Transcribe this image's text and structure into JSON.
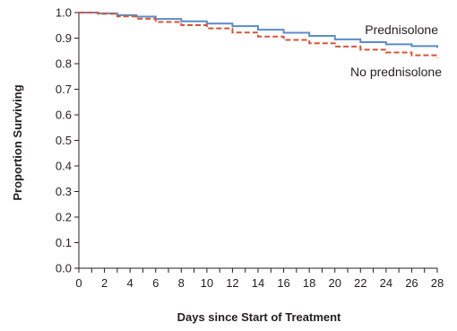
{
  "chart_data": {
    "type": "line",
    "title": "",
    "xlabel": "Days since Start of Treatment",
    "ylabel": "Proportion Surviving",
    "xlim": [
      0,
      28
    ],
    "ylim": [
      0.0,
      1.0
    ],
    "x_ticks": [
      "0",
      "2",
      "4",
      "6",
      "8",
      "10",
      "12",
      "14",
      "16",
      "18",
      "20",
      "22",
      "24",
      "26",
      "28"
    ],
    "y_ticks": [
      "0.0",
      "0.1",
      "0.2",
      "0.3",
      "0.4",
      "0.5",
      "0.6",
      "0.7",
      "0.8",
      "0.9",
      "1.0"
    ],
    "grid": false,
    "step": true,
    "series": [
      {
        "name": "Prednisolone",
        "color": "#5b8cc8",
        "style": "solid",
        "points": [
          [
            0,
            1.0
          ],
          [
            1.5,
            0.997
          ],
          [
            3,
            0.99
          ],
          [
            4.5,
            0.984
          ],
          [
            6,
            0.975
          ],
          [
            8,
            0.966
          ],
          [
            10,
            0.957
          ],
          [
            12,
            0.947
          ],
          [
            14,
            0.933
          ],
          [
            16,
            0.921
          ],
          [
            18,
            0.909
          ],
          [
            20,
            0.895
          ],
          [
            22,
            0.884
          ],
          [
            24,
            0.876
          ],
          [
            26,
            0.869
          ],
          [
            28,
            0.862
          ]
        ]
      },
      {
        "name": "No prednisolone",
        "color": "#d4553b",
        "style": "dashed",
        "points": [
          [
            0,
            1.0
          ],
          [
            1.5,
            0.995
          ],
          [
            3,
            0.985
          ],
          [
            4.5,
            0.976
          ],
          [
            6,
            0.963
          ],
          [
            8,
            0.951
          ],
          [
            10,
            0.938
          ],
          [
            12,
            0.922
          ],
          [
            14,
            0.906
          ],
          [
            16,
            0.893
          ],
          [
            18,
            0.88
          ],
          [
            20,
            0.867
          ],
          [
            22,
            0.855
          ],
          [
            24,
            0.844
          ],
          [
            26,
            0.833
          ],
          [
            28,
            0.823
          ]
        ]
      }
    ]
  }
}
